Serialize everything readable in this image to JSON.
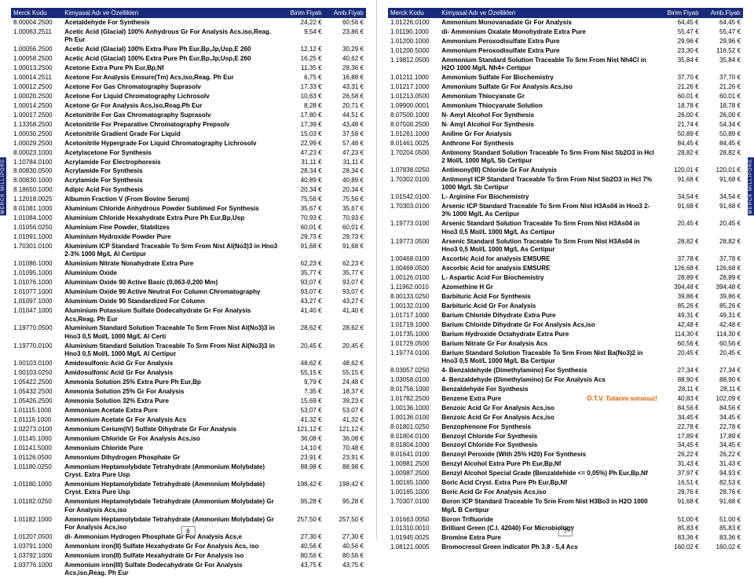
{
  "sideLabel": "MERCK MILLIPORE",
  "headers": {
    "code": "Merck Kodu",
    "name": "Kimyasal Adı ve Özellikleri",
    "p1": "Birim Fiyatı",
    "p2": "Amb.Fiyatı"
  },
  "stockNote": "Ö.T.V. Tutarını sorunuz!",
  "pageNumLeft": "6",
  "pageNumRight": "7",
  "left": [
    {
      "c": "8.00004.2500",
      "n": "Acetaldehyde For Synthesis",
      "p1": "24,22 €",
      "p2": "60,56 €"
    },
    {
      "c": "1.00063.2511",
      "n": "Acetic Acid (Glacial) 100% Anhydrous Gr For Analysis Acs,iso,Reag. Ph Eur",
      "p1": "9,54 €",
      "p2": "23,86 €"
    },
    {
      "c": "1.00056.2500",
      "n": "Acetic Acid (Glacial) 100% Extra Pure Ph Eur,Bp,Jp,Usp,E 260",
      "p1": "12,12 €",
      "p2": "30,29 €"
    },
    {
      "c": "1.00058.2500",
      "n": "Acetic Acid (Glacial) 100% Extra Pure Ph Eur,Bp,Jp,Usp,E 260",
      "p1": "16,25 €",
      "p2": "40,62 €"
    },
    {
      "c": "1.00013.2500",
      "n": "Acetone Extra Pure Ph Eur,Bp,Nf",
      "p1": "11,35 €",
      "p2": "28,36 €"
    },
    {
      "c": "1.00014.2511",
      "n": "Acetone For Analysis Emsure(Tm) Acs,iso,Reag. Ph Eur",
      "p1": "6,75 €",
      "p2": "16,88 €"
    },
    {
      "c": "1.00012.2500",
      "n": "Acetone For Gas Chromatography Suprasolv",
      "p1": "17,33 €",
      "p2": "43,31 €"
    },
    {
      "c": "1.00020.2500",
      "n": "Acetone For Liquid Chromatography Lichrosolv",
      "p1": "10,63 €",
      "p2": "26,58 €"
    },
    {
      "c": "1.00014.2500",
      "n": "Acetone Gr For Analysis Acs,iso,Reag.Ph Eur",
      "p1": "8,28 €",
      "p2": "20,71 €"
    },
    {
      "c": "1.00017.2500",
      "n": "Acetonitrile For Gas Chromatography Suprasolv",
      "p1": "17,80 €",
      "p2": "44,51 €"
    },
    {
      "c": "1.13358.2500",
      "n": "Acetonitrile For Preparative Chromatography Prepsolv",
      "p1": "17,39 €",
      "p2": "43,48 €"
    },
    {
      "c": "1.00030.2500",
      "n": "Acetonitrile Gradient Grade For Liquid",
      "p1": "15,03 €",
      "p2": "37,58 €"
    },
    {
      "c": "1.00029.2500",
      "n": "Acetonitrile Hypergrade For Liquid Chromatography Lichrosolv",
      "p1": "22,99 €",
      "p2": "57,48 €"
    },
    {
      "c": "8.00023.1000",
      "n": "Acetylacetone For Synthesis",
      "p1": "47,23 €",
      "p2": "47,23 €"
    },
    {
      "c": "1.10784.0100",
      "n": "Acrylamide For Electrophoresis",
      "p1": "31,11 €",
      "p2": "31,11 €"
    },
    {
      "c": "8.00830.0500",
      "n": "Acrylamide For Synthesis",
      "p1": "28,34 €",
      "p2": "28,34 €"
    },
    {
      "c": "8.00830.1000",
      "n": "Acrylamide For Synthesis",
      "p1": "40,89 €",
      "p2": "40,89 €"
    },
    {
      "c": "8.18650.1000",
      "n": "Adipic Acid For Synthesis",
      "p1": "20,34 €",
      "p2": "20,34 €"
    },
    {
      "c": "1.12018.0025",
      "n": "Albumin Fraction V (From Bovine Serum)",
      "p1": "75,56 €",
      "p2": "75,56 €"
    },
    {
      "c": "8.01081.1000",
      "n": "Aluminium Chloride Anhydrous Powder Sublimed For Synthesis",
      "p1": "35,67 €",
      "p2": "35,67 €"
    },
    {
      "c": "1.01084.1000",
      "n": "Aluminium Chloride Hexahydrate Extra Pure Ph Eur,Bp,Usp",
      "p1": "70,93 €",
      "p2": "70,93 €"
    },
    {
      "c": "1.01056.0250",
      "n": "Aluminium Fine Powder, Stabilizes",
      "p1": "60,01 €",
      "p2": "60,01 €"
    },
    {
      "c": "1.01091.1000",
      "n": "Aluminium Hydroxide Powder Pure",
      "p1": "29,73 €",
      "p2": "29,73 €"
    },
    {
      "c": "1.70301.0100",
      "n": "Aluminium ICP Standard Traceable To Srm From Nist Al(No3)3 in Hno3 2-3% 1000 Mg/L Al Certipur",
      "p1": "91,68 €",
      "p2": "91,68 €"
    },
    {
      "c": "1.01086.1000",
      "n": "Aluminium Nitrate Nonahydrate Extra Pure",
      "p1": "62,23 €",
      "p2": "62,23 €"
    },
    {
      "c": "1.01095.1000",
      "n": "Aluminium Oxide",
      "p1": "35,77 €",
      "p2": "35,77 €"
    },
    {
      "c": "1.01076.1000",
      "n": "Aluminium Oxide 90 Active Basic (0,063-0,200 Mm)",
      "p1": "93,07 €",
      "p2": "93,07 €"
    },
    {
      "c": "1.01077.1000",
      "n": "Aluminium Oxide 90 Active Neutral For Column Chromatography",
      "p1": "93,07 €",
      "p2": "93,07 €"
    },
    {
      "c": "1.01097.1000",
      "n": "Aluminium Oxide 90 Standardized For Column",
      "p1": "43,27 €",
      "p2": "43,27 €"
    },
    {
      "c": "1.01047.1000",
      "n": "Aluminium Potassium Sulfate Dodecahydrate Gr For Analysis Acs,Reag. Ph Eur",
      "p1": "41,40 €",
      "p2": "41,40 €"
    },
    {
      "c": "1.19770.0500",
      "n": "Aluminium Standard Solution Traceable To Srm From Nist Al(No3)3 in Hno3 0,5 Mol/L 1000 Mg/L Al Certi",
      "p1": "28,62 €",
      "p2": "28,62 €"
    },
    {
      "c": "1.19770.0100",
      "n": "Aluminium Standard Solution Traceable To Srm From Nist Al(No3)3 in Hno3 0,5 Mol/L 1000 Mg/L Al Certipur",
      "p1": "20,45 €",
      "p2": "20,45 €"
    },
    {
      "c": "1.00103.0100",
      "n": "Amidosulfonic Acid Gr For Analysis",
      "p1": "48,62 €",
      "p2": "48,62 €"
    },
    {
      "c": "1.00103.0250",
      "n": "Amidosulfonic Acid Gr For Analysis",
      "p1": "55,15 €",
      "p2": "55,15 €"
    },
    {
      "c": "1.05422.2500",
      "n": "Ammonia Solution 25% Extra Pure Ph Eur,Bp",
      "p1": "9,79 €",
      "p2": "24,48 €"
    },
    {
      "c": "1.05432.2500",
      "n": "Ammonia Solution 25% Gr For Analysis",
      "p1": "7,35 €",
      "p2": "18,37 €"
    },
    {
      "c": "1.05426.2500",
      "n": "Ammonia Solution 32% Extra Pure",
      "p1": "15,69 €",
      "p2": "39,23 €"
    },
    {
      "c": "1.01115.1000",
      "n": "Ammonium Acetate Extra Pure",
      "p1": "53,07 €",
      "p2": "53,07 €"
    },
    {
      "c": "1.01116.1000",
      "n": "Ammonium Acetate Gr For Analysis Acs",
      "p1": "41,32 €",
      "p2": "41,32 €"
    },
    {
      "c": "1.02273.0100",
      "n": "Ammonium Cerium(IV) Sulfate Dihydrate Gr For Analysis",
      "p1": "121,12 €",
      "p2": "121,12 €"
    },
    {
      "c": "1.01145.1000",
      "n": "Ammonium Chloride Gr For Analysis Acs,iso",
      "p1": "36,08 €",
      "p2": "36,08 €"
    },
    {
      "c": "1.01141.5000",
      "n": "Ammonium Chloride Pure",
      "p1": "14,10 €",
      "p2": "70,48 €"
    },
    {
      "c": "1.01126.0500",
      "n": "Ammonium Dihydrogen Phosphate Gr",
      "p1": "23,91 €",
      "p2": "23,91 €"
    },
    {
      "c": "1.01180.0250",
      "n": "Ammonium Heptamolybdate Tetrahydrate (Ammonium Molybdate) Cryst. Extra Pure Usp",
      "p1": "88,98 €",
      "p2": "88,98 €"
    },
    {
      "c": "1.01180.1000",
      "n": "Ammonium Heptamolybdate Tetrahydrate (Ammonium Molybdate) Cryst. Extra Pure Usp",
      "p1": "198,42 €",
      "p2": "198,42 €"
    },
    {
      "c": "1.01182.0250",
      "n": "Ammonium Heptamolybdate Tetrahydrate (Ammonium Molybdate) Gr For Analysis Acs,iso",
      "p1": "95,28 €",
      "p2": "95,28 €"
    },
    {
      "c": "1.01182.1000",
      "n": "Ammonium Heptamolybdate Tetrahydrate (Ammonium Molybdate) Gr For Analysis Acs,iso",
      "p1": "257,50 €",
      "p2": "257,50 €"
    },
    {
      "c": "1.01207.0500",
      "n": "di- Ammonium Hydrogen Phosphate Gr For Analysis Acs,e",
      "p1": "27,30 €",
      "p2": "27,30 €"
    },
    {
      "c": "1.03791.1000",
      "n": "Ammonium iron(II) Sulfate Hexahydrate Gr For Analysis Acs, iso",
      "p1": "40,56 €",
      "p2": "40,56 €"
    },
    {
      "c": "1.03792.1000",
      "n": "Ammonium iron(II) Sulfate Hexahydrate Gr For Analysis iso",
      "p1": "80,56 €",
      "p2": "80,56 €"
    },
    {
      "c": "1.03776.1000",
      "n": "Ammonium iron(III) Sulfate Dodecahydrate Gr For Analysis Acs,iso,Reag. Ph Eur",
      "p1": "43,75 €",
      "p2": "43,75 €"
    }
  ],
  "right": [
    {
      "c": "1.01226.0100",
      "n": "Ammonium Monovanadate Gr For Analysis",
      "p1": "64,45 €",
      "p2": "64,45 €"
    },
    {
      "c": "1.01190.1000",
      "n": "di- Ammonium Oxalate Monohydrate Extra Pure",
      "p1": "55,47 €",
      "p2": "55,47 €"
    },
    {
      "c": "1.01200.1000",
      "n": "Ammonium Peroxodisulfate Extra Pure",
      "p1": "29,96 €",
      "p2": "29,96 €"
    },
    {
      "c": "1.01200.5000",
      "n": "Ammonium Peroxodisulfate Extra Pure",
      "p1": "23,30 €",
      "p2": "116,52 €"
    },
    {
      "c": "1.19812.0500",
      "n": "Ammonium Standard Solution Traceable To Srm From Nist Nh4Cl in H2O 1000 Mg/L Nh4+ Certipur",
      "p1": "35,84 €",
      "p2": "35,84 €"
    },
    {
      "c": "1.01211.1000",
      "n": "Ammonium Sulfate For Biochemistry",
      "p1": "37,70 €",
      "p2": "37,70 €"
    },
    {
      "c": "1.01217.1000",
      "n": "Ammonium Sulfate Gr For Analysis Acs,iso",
      "p1": "21,26 €",
      "p2": "21,26 €"
    },
    {
      "c": "1.01213.0500",
      "n": "Ammonium Thiocyanate Gr",
      "p1": "60,01 €",
      "p2": "60,01 €"
    },
    {
      "c": "1.09900.0001",
      "n": "Ammonium Thiocyanate Solution",
      "p1": "18,78 €",
      "p2": "18,78 €"
    },
    {
      "c": "8.07500.1000",
      "n": "N- Amyl Alcohol For Synthesis",
      "p1": "26,00 €",
      "p2": "26,00 €"
    },
    {
      "c": "8.07500.2500",
      "n": "N- Amyl Alcohol For Synthesis",
      "p1": "21,74 €",
      "p2": "54,34 €"
    },
    {
      "c": "1.01261.1000",
      "n": "Aniline Gr For Analysis",
      "p1": "50,89 €",
      "p2": "50,89 €"
    },
    {
      "c": "8.01461.0025",
      "n": "Anthrone For Synthesis",
      "p1": "84,45 €",
      "p2": "84,45 €"
    },
    {
      "c": "1.70204.0500",
      "n": "Antimony Standard Solution Traceable To Srm From Nist Sb2O3 in Hcl 2 Mol/L 1000 Mg/L Sb Certipur",
      "p1": "28,82 €",
      "p2": "28,82 €"
    },
    {
      "c": "1.07838.0250",
      "n": "Antimony(III) Chloride Gr For Analysis",
      "p1": "120,01 €",
      "p2": "120,01 €"
    },
    {
      "c": "1.70302.0100",
      "n": "Antimonyl ICP Standard Traceable To Srm From Nist Sb2O3 in Hcl 7% 1000 Mg/L Sb Certipur",
      "p1": "91,68 €",
      "p2": "91,68 €"
    },
    {
      "c": "1.01542.0100",
      "n": "L- Arginine For Biochemistry",
      "p1": "34,54 €",
      "p2": "34,54 €"
    },
    {
      "c": "1.70303.0100",
      "n": "Arsenic ICP Standard Traceable To Srm From Nist H3As04 in Hno3 2-3% 1000 Mg/L As Certipur",
      "p1": "91,68 €",
      "p2": "91,68 €"
    },
    {
      "c": "1.19773.0100",
      "n": "Arsenic Standard Solution Traceable To Srm From Nist H3As04 in Hno3 0,5 Mol/L 1000 Mg/L As Certipur",
      "p1": "20,45 €",
      "p2": "20,45 €"
    },
    {
      "c": "1.19773.0500",
      "n": "Arsenic Standard Solution Traceable To Srm From Nist H3As04 in Hno3 0,5 Mol/L 1000 Mg/L As Certipur",
      "p1": "28,82 €",
      "p2": "28,82 €"
    },
    {
      "c": "1.00468.0100",
      "n": "Ascorbic Acid for analysis EMSURE",
      "p1": "37,78 €",
      "p2": "37,78 €"
    },
    {
      "c": "1.00468.0500",
      "n": "Ascorbic Acid for analysis EMSURE",
      "p1": "126,68 €",
      "p2": "126,68 €"
    },
    {
      "c": "1.00126.0100",
      "n": "L- Aspartic Acid For Biochemistry",
      "p1": "28,89 €",
      "p2": "28,89 €"
    },
    {
      "c": "1.11962.0010",
      "n": "Azomethine H Gr",
      "p1": "394,48 €",
      "p2": "394,48 €"
    },
    {
      "c": "8.00133.0250",
      "n": "Barbituric Acid For Synthesis",
      "p1": "39,86 €",
      "p2": "39,86 €"
    },
    {
      "c": "1.00132.0100",
      "n": "Barbituric Acid Gr For Analysis",
      "p1": "85,26 €",
      "p2": "85,26 €"
    },
    {
      "c": "1.01717.1000",
      "n": "Barium Chloride Dihydrate Extra Pure",
      "p1": "49,31 €",
      "p2": "49,31 €"
    },
    {
      "c": "1.01719.1000",
      "n": "Barium Chloride Dihydrate Gr For Analysis Acs,iso",
      "p1": "42,48 €",
      "p2": "42,48 €"
    },
    {
      "c": "1.01735.1000",
      "n": "Barium Hydroxide Octahydrate Extra Pure",
      "p1": "114,30 €",
      "p2": "114,30 €"
    },
    {
      "c": "1.01729.0500",
      "n": "Barium Nitrate Gr For Analysis Acs",
      "p1": "60,56 €",
      "p2": "60,56 €"
    },
    {
      "c": "1.19774.0100",
      "n": "Barium Standard Solution Traceable To Srm From Nist Ba(No3)2 in Hno3 0,5 Mol/L 1000 Mg/L Ba Certipur",
      "p1": "20,45 €",
      "p2": "20,45 €"
    },
    {
      "c": "8.03057.0250",
      "n": "4- Benzaldehyde (Dimethylamino) For Synthesis",
      "p1": "27,34 €",
      "p2": "27,34 €"
    },
    {
      "c": "1.03058.0100",
      "n": "4- Benzaldehyde (Dimethylamino) Gr For Analysis Acs",
      "p1": "88,90 €",
      "p2": "88,90 €"
    },
    {
      "c": "8.01756.1000",
      "n": "Benzaldehyde For Synthesis",
      "p1": "28,11 €",
      "p2": "28,11 €"
    },
    {
      "c": "1.01782.2500",
      "n": "Benzene Extra Pure",
      "p1": "40,83 €",
      "p2": "102,09 €",
      "note": true
    },
    {
      "c": "1.00136.1000",
      "n": "Benzoic Acid Gr For Analysis Acs,iso",
      "p1": "84,56 €",
      "p2": "84,56 €"
    },
    {
      "c": "1.00136.0100",
      "n": "Benzoic Acid Gr For Analysis Acs,iso",
      "p1": "34,45 €",
      "p2": "34,45 €"
    },
    {
      "c": "8.01801.0250",
      "n": "Benzophenone For Synthesis",
      "p1": "22,78 €",
      "p2": "22,78 €"
    },
    {
      "c": "8.01804.0100",
      "n": "Benzoyl Chloride For Synthesis",
      "p1": "17,89 €",
      "p2": "17,89 €"
    },
    {
      "c": "8.01804.1000",
      "n": "Benzoyl Chloride For Synthesis",
      "p1": "34,45 €",
      "p2": "34,45 €"
    },
    {
      "c": "8.01641.0100",
      "n": "Benzoyl Peroxide (With 25% H20) For Synthesis",
      "p1": "26,22 €",
      "p2": "26,22 €"
    },
    {
      "c": "1.00981.2500",
      "n": "Benzyl Alcohol Extra Pure Ph Eur,Bp,Nf",
      "p1": "31,43 €",
      "p2": "31,43 €"
    },
    {
      "c": "1.00987.2500",
      "n": "Benzyl Alcohol Special Grade (Benzaldehide <= 0,05%) Ph Eur,Bp,Nf",
      "p1": "37,97 €",
      "p2": "94,93 €"
    },
    {
      "c": "1.00165.1000",
      "n": "Boric Acid Cryst. Extra Pure Ph Eur,Bp,Nf",
      "p1": "16,51 €",
      "p2": "82,53 €"
    },
    {
      "c": "1.00165.1000",
      "n": "Boric Acid Gr For Analysis Acs,iso",
      "p1": "28,76 €",
      "p2": "28,76 €"
    },
    {
      "c": "1.70307.0100",
      "n": "Boron ICP Standard Traceable To Srm From Nist H3Bo3 in H2O 1000 Mg/L B Certipur",
      "p1": "91,68 €",
      "p2": "91,68 €"
    },
    {
      "c": "1.01663.0050",
      "n": "Boron Trifluoride",
      "p1": "51,00 €",
      "p2": "51,00 €"
    },
    {
      "c": "1.01310.0010",
      "n": "Brilliant Green (C.I. 42040) For Microbiology",
      "p1": "85,83 €",
      "p2": "85,83 €"
    },
    {
      "c": "1.01945.0025",
      "n": "Bromine Extra Pure",
      "p1": "83,36 €",
      "p2": "83,36 €"
    },
    {
      "c": "1.08121.0005",
      "n": "Bromocresol Green indicator Ph 3,8 - 5,4 Acs",
      "p1": "160,02 €",
      "p2": "160,02 €"
    }
  ]
}
